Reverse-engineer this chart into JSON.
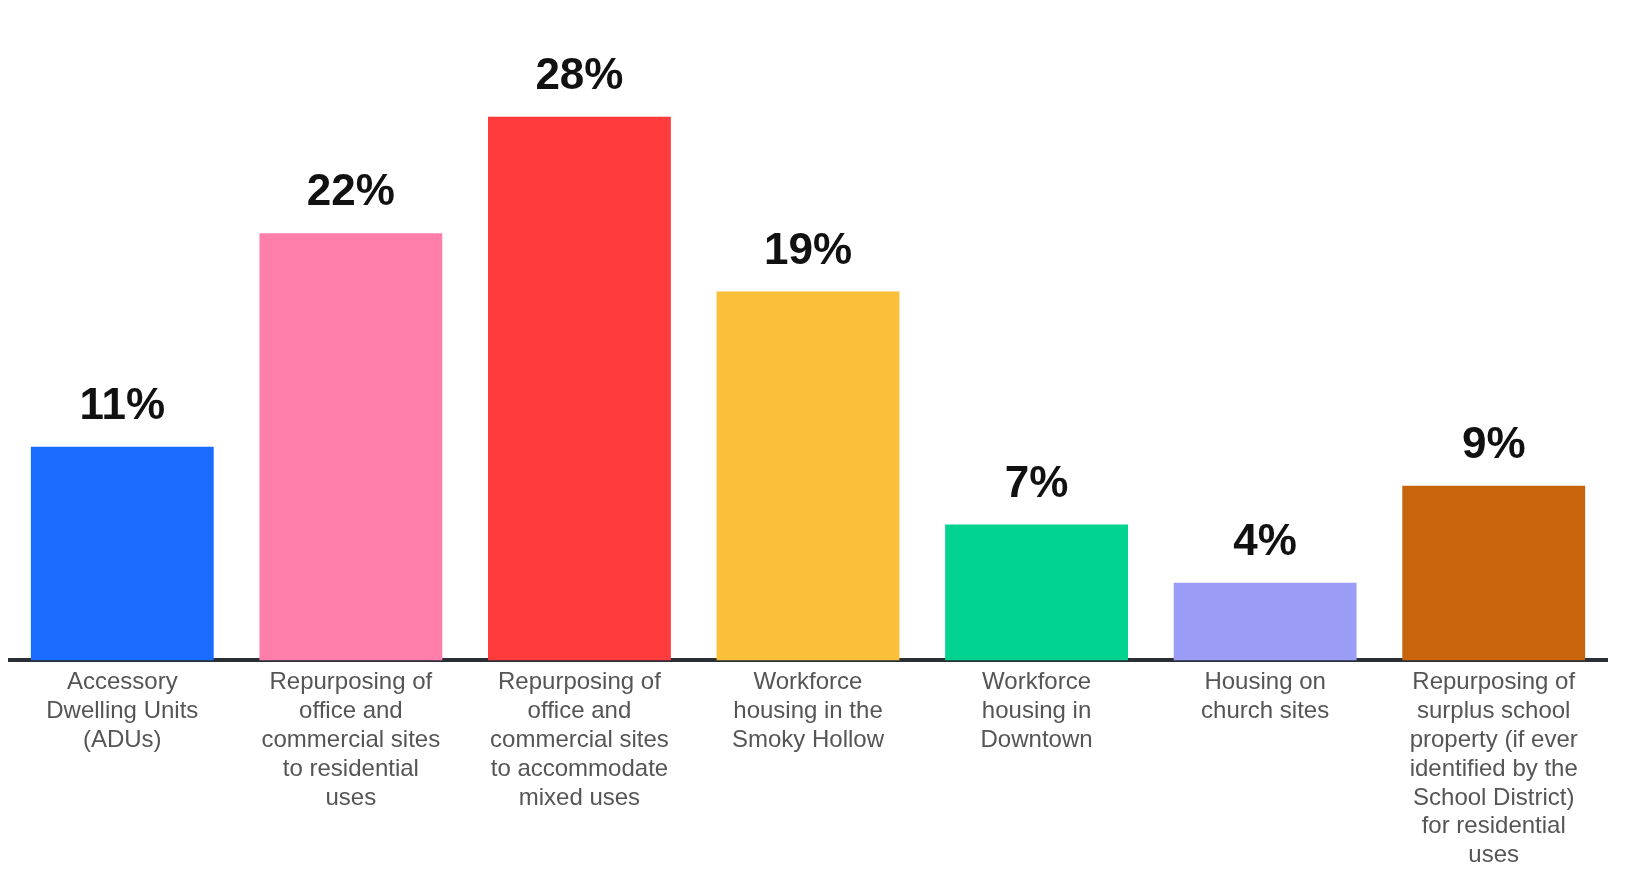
{
  "chart_data": {
    "type": "bar",
    "categories": [
      "Accessory Dwelling Units (ADUs)",
      "Repurposing of office and commercial sites to residential uses",
      "Repurposing of office and commercial sites to accommodate mixed uses",
      "Workforce housing in the Smoky Hollow",
      "Workforce housing in Downtown",
      "Housing on church sites",
      "Repurposing of surplus school property (if ever identified by the School District) for residential uses"
    ],
    "values": [
      11,
      22,
      28,
      19,
      7,
      4,
      9
    ],
    "colors": [
      "#1a6bff",
      "#ff7eaa",
      "#ff3b3b",
      "#fcc038",
      "#00d38f",
      "#9b9cf5",
      "#c8640c"
    ],
    "value_labels": [
      "11%",
      "22%",
      "28%",
      "19%",
      "7%",
      "4%",
      "9%"
    ],
    "grid": false,
    "legend": false
  }
}
